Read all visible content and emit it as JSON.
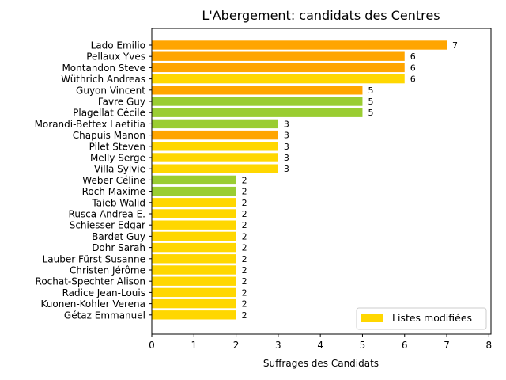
{
  "chart_data": {
    "type": "bar",
    "orientation": "horizontal",
    "title": "L'Abergement: candidats des Centres",
    "xlabel": "Suffrages des Candidats",
    "ylabel": "",
    "xlim": [
      0,
      8.05
    ],
    "xticks": [
      0,
      1,
      2,
      3,
      4,
      5,
      6,
      7,
      8
    ],
    "grid": false,
    "legend": {
      "placement": "bottom-right",
      "entries": [
        {
          "label": "Listes modifiées",
          "color": "#FFD700"
        }
      ]
    },
    "colors": {
      "orange": "#FFA500",
      "green": "#9ACD32",
      "gold": "#FFD700"
    },
    "categories": [
      "Lado Emilio",
      "Pellaux Yves",
      "Montandon Steve",
      "Wüthrich Andreas",
      "Guyon Vincent",
      "Favre Guy",
      "Plagellat Cécile",
      "Morandi-Bettex Laetitia",
      "Chapuis Manon",
      "Pilet Steven",
      "Melly Serge",
      "Villa Sylvie",
      "Weber Céline",
      "Roch Maxime",
      "Taieb Walid",
      "Rusca Andrea E.",
      "Schiesser Edgar",
      "Bardet Guy",
      "Dohr Sarah",
      "Lauber Fürst Susanne",
      "Christen Jérôme",
      "Rochat-Spechter Alison",
      "Radice Jean-Louis",
      "Kuonen-Kohler Verena",
      "Gétaz Emmanuel"
    ],
    "values": [
      7,
      6,
      6,
      6,
      5,
      5,
      5,
      3,
      3,
      3,
      3,
      3,
      2,
      2,
      2,
      2,
      2,
      2,
      2,
      2,
      2,
      2,
      2,
      2,
      2
    ],
    "bar_colors": [
      "orange",
      "orange",
      "orange",
      "gold",
      "orange",
      "green",
      "green",
      "green",
      "orange",
      "gold",
      "gold",
      "gold",
      "green",
      "green",
      "gold",
      "gold",
      "gold",
      "gold",
      "gold",
      "gold",
      "gold",
      "gold",
      "gold",
      "gold",
      "gold"
    ]
  }
}
